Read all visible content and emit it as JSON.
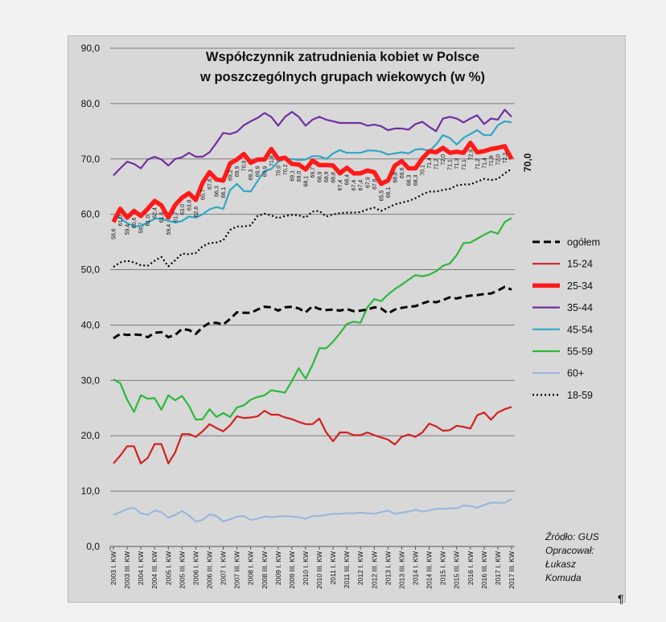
{
  "chart_data": {
    "type": "line",
    "title": "Współczynnik zatrudnienia kobiet w Polsce",
    "subtitle": "w poszczególnych grupach wiekowych (w %)",
    "ylim": [
      0,
      90
    ],
    "yticks": [
      "0,0",
      "10,0",
      "20,0",
      "30,0",
      "40,0",
      "50,0",
      "60,0",
      "70,0",
      "80,0",
      "90,0"
    ],
    "grid": "horizontal",
    "legend_position": "right",
    "x_labels": [
      "2003 I. KW",
      "2003 III. KW",
      "2004 I. KW",
      "2004 III. KW",
      "2005 I. KW",
      "2005 III. KW",
      "2006 I. KW",
      "2006 III. KW",
      "2007 I. KW",
      "2007 III. KW",
      "2008 I. KW",
      "2008 III. KW",
      "2009 I. KW",
      "2009 III. KW",
      "2010 I. KW",
      "2010 III. KW",
      "2011 I. KW",
      "2011 III. KW",
      "2012 I. KW",
      "2012 III. KW",
      "2013 I. KW",
      "2013 III. KW",
      "2014 I. KW",
      "2014 III. KW",
      "2015 I. KW",
      "2015 III. KW",
      "2016 I. KW",
      "2016 III. KW",
      "2017 I. KW",
      "2017 III. KW"
    ],
    "n_points": 59,
    "series": [
      {
        "name": "ogółem",
        "color": "#000000",
        "style": "dashed",
        "values": [
          37.6,
          38.4,
          38.2,
          38.3,
          38.2,
          37.8,
          38.6,
          38.7,
          37.8,
          38.2,
          39.3,
          39.1,
          38.4,
          39.6,
          40.4,
          40.4,
          40.1,
          41.1,
          42.3,
          42.2,
          42.2,
          42.8,
          43.3,
          43.2,
          42.6,
          43.2,
          43.3,
          43.0,
          42.3,
          43.4,
          42.9,
          42.7,
          42.8,
          42.6,
          42.9,
          42.5,
          42.6,
          42.8,
          43.2,
          43.0,
          42.1,
          42.8,
          43.1,
          43.3,
          43.4,
          43.9,
          44.3,
          44.1,
          44.5,
          45.0,
          44.8,
          45.1,
          45.3,
          45.4,
          45.6,
          45.7,
          46.2,
          46.9,
          46.4
        ]
      },
      {
        "name": "15-24",
        "color": "#d42020",
        "style": "solid",
        "values": [
          15.0,
          16.4,
          18.1,
          18.1,
          15.0,
          16.0,
          18.5,
          18.5,
          15.0,
          17.0,
          20.3,
          20.3,
          19.8,
          20.8,
          22.1,
          21.4,
          20.8,
          21.9,
          23.5,
          23.2,
          23.3,
          23.5,
          24.5,
          23.8,
          23.8,
          23.3,
          23.0,
          22.5,
          22.1,
          22.1,
          23.1,
          20.6,
          19.0,
          20.6,
          20.6,
          20.1,
          20.1,
          20.6,
          20.1,
          19.7,
          19.3,
          18.4,
          19.8,
          20.2,
          19.8,
          20.6,
          22.2,
          21.7,
          20.9,
          21.0,
          21.8,
          21.6,
          21.3,
          23.7,
          24.2,
          22.9,
          24.2,
          24.8,
          25.2
        ]
      },
      {
        "name": "25-34",
        "color": "#ff1a1a",
        "style": "thick",
        "values": [
          58.6,
          61.0,
          59.4,
          60.6,
          59.7,
          61.0,
          62.4,
          61.6,
          59.4,
          61.7,
          63.0,
          63.8,
          62.6,
          65.7,
          67.6,
          66.3,
          66.1,
          69.2,
          69.9,
          70.9,
          69.3,
          69.9,
          69.9,
          71.8,
          70.0,
          70.2,
          69.1,
          69.0,
          68.1,
          69.7,
          68.9,
          68.9,
          68.8,
          67.4,
          68.4,
          67.4,
          67.4,
          67.9,
          67.6,
          65.5,
          66.1,
          68.8,
          69.6,
          68.3,
          68.3,
          70.1,
          71.4,
          71.2,
          72.0,
          71.1,
          71.3,
          71.1,
          72.9,
          71.2,
          71.4,
          71.8,
          72.0,
          72.3,
          70.0
        ]
      },
      {
        "name": "35-44",
        "color": "#7030a0",
        "style": "solid",
        "values": [
          67.0,
          68.3,
          69.5,
          69.1,
          68.3,
          69.9,
          70.4,
          69.9,
          68.8,
          70.0,
          70.3,
          71.1,
          70.4,
          70.4,
          71.2,
          72.9,
          74.7,
          74.5,
          74.9,
          76.1,
          76.8,
          77.4,
          78.3,
          77.6,
          76.0,
          77.6,
          78.5,
          77.6,
          76.0,
          77.1,
          77.6,
          77.1,
          76.8,
          76.5,
          76.5,
          76.5,
          76.5,
          76.0,
          76.2,
          75.9,
          75.2,
          75.5,
          75.5,
          75.3,
          76.3,
          76.7,
          75.8,
          75.0,
          77.3,
          77.6,
          77.3,
          76.6,
          77.3,
          77.9,
          76.3,
          77.3,
          77.1,
          78.9,
          77.6
        ]
      },
      {
        "name": "45-54",
        "color": "#31a7c6",
        "style": "solid",
        "values": [
          59.6,
          59.3,
          58.4,
          57.8,
          57.9,
          58.5,
          59.2,
          59.2,
          58.8,
          58.5,
          58.8,
          59.6,
          59.4,
          60.0,
          60.9,
          61.3,
          61.0,
          64.4,
          65.5,
          64.2,
          64.1,
          66.0,
          67.8,
          68.2,
          69.5,
          70.0,
          70.0,
          69.8,
          69.9,
          70.5,
          70.5,
          70.0,
          71.0,
          71.6,
          71.1,
          71.1,
          71.1,
          71.5,
          71.5,
          71.3,
          70.8,
          71.0,
          71.2,
          71.0,
          71.7,
          71.8,
          71.4,
          72.6,
          74.3,
          73.8,
          72.6,
          73.8,
          74.5,
          75.2,
          74.3,
          74.3,
          76.1,
          76.8,
          76.6
        ]
      },
      {
        "name": "55-59",
        "color": "#2db83c",
        "style": "solid",
        "values": [
          30.2,
          29.5,
          26.5,
          24.3,
          27.3,
          26.7,
          26.8,
          24.7,
          27.3,
          26.4,
          27.2,
          25.4,
          22.9,
          23.0,
          24.8,
          23.4,
          24.1,
          23.4,
          25.1,
          25.5,
          26.5,
          27.0,
          27.3,
          28.2,
          28.0,
          27.8,
          29.9,
          32.2,
          30.3,
          32.8,
          35.8,
          35.8,
          37.0,
          38.5,
          40.2,
          40.6,
          40.4,
          43.2,
          44.7,
          44.3,
          45.5,
          46.5,
          47.3,
          48.2,
          49.0,
          48.8,
          49.1,
          49.7,
          50.7,
          51.1,
          52.6,
          54.8,
          54.9,
          55.6,
          56.3,
          56.9,
          56.5,
          58.6,
          59.3
        ]
      },
      {
        "name": "60+",
        "color": "#9bb7dd",
        "style": "solid",
        "values": [
          5.7,
          6.2,
          6.8,
          7.0,
          6.0,
          5.7,
          6.5,
          6.2,
          5.2,
          5.7,
          6.4,
          5.6,
          4.5,
          4.8,
          5.8,
          5.5,
          4.5,
          4.9,
          5.4,
          5.5,
          4.8,
          5.0,
          5.4,
          5.3,
          5.4,
          5.5,
          5.4,
          5.3,
          5.0,
          5.5,
          5.5,
          5.7,
          5.9,
          5.9,
          6.0,
          6.0,
          6.1,
          6.0,
          5.9,
          6.2,
          6.5,
          5.9,
          6.1,
          6.3,
          6.6,
          6.3,
          6.5,
          6.8,
          6.8,
          6.9,
          6.9,
          7.4,
          7.3,
          7.0,
          7.5,
          7.9,
          7.9,
          7.9,
          8.6
        ]
      },
      {
        "name": "18-59",
        "color": "#000000",
        "style": "dotted",
        "values": [
          50.5,
          51.3,
          51.6,
          51.3,
          50.8,
          50.7,
          51.6,
          52.3,
          50.6,
          51.7,
          52.9,
          52.8,
          53.0,
          54.2,
          54.8,
          54.9,
          55.3,
          57.2,
          57.8,
          57.8,
          58.0,
          59.7,
          60.1,
          59.8,
          59.3,
          59.7,
          59.9,
          59.8,
          59.4,
          60.5,
          60.6,
          59.6,
          60.0,
          60.2,
          60.3,
          60.3,
          60.4,
          60.9,
          61.2,
          60.6,
          61.2,
          61.8,
          62.1,
          62.4,
          62.9,
          63.6,
          64.1,
          64.1,
          64.4,
          64.6,
          65.2,
          65.4,
          65.4,
          65.9,
          66.4,
          66.2,
          66.4,
          67.4,
          68.2
        ]
      }
    ],
    "data_labels_25_34": {
      "left": [
        "58,6",
        "61,0",
        "59,4",
        "60,6",
        "59,7",
        "61,0",
        "62,4",
        "61,6",
        "59,4",
        "61,7",
        "63,0",
        "63,8",
        "62,6",
        "65,7",
        "67,6",
        "66,3",
        "66,1",
        "69,2",
        "69,9",
        "70,9",
        "69,3",
        "69,9",
        "69,9",
        "71,8",
        "70,0",
        "70,2",
        "69,1",
        "69,0",
        "68,1",
        "69,7",
        "68,9",
        "68,9",
        "68,8",
        "67,4",
        "68,4",
        "67,4",
        "67,4",
        "67,9",
        "67,6",
        "65,5",
        "66,1",
        "68,8",
        "69,6",
        "68,3",
        "68,3",
        "70,1",
        "71,4",
        "71,2",
        "72,0",
        "71,1",
        "71,3",
        "71,1",
        "72,9",
        "71,2",
        "71,4",
        "71,8",
        "72,0",
        "72,3"
      ],
      "last": "70,0"
    },
    "legend": [
      "ogółem",
      "15-24",
      "25-34",
      "35-44",
      "45-54",
      "55-59",
      "60+",
      "18-59"
    ],
    "source": [
      "Źródło: GUS",
      "Opracował:",
      "Łukasz",
      "Komuda"
    ],
    "pilcrow": "¶"
  }
}
